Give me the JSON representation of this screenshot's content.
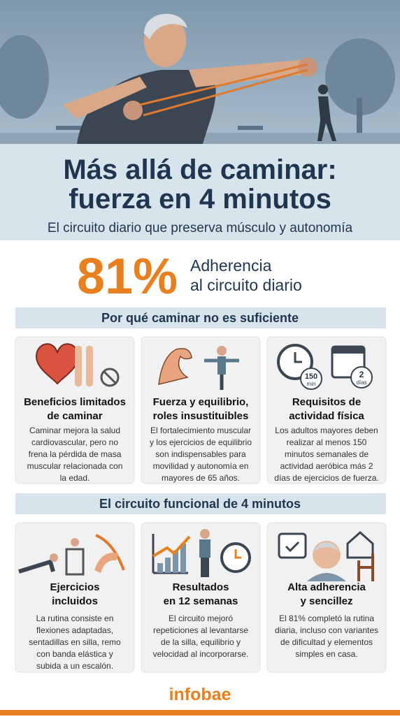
{
  "header": {
    "title_lines": [
      "Más allá de caminar:",
      "fuerza en 4 minutos"
    ],
    "subtitle": "El circuito diario que preserva músculo y autonomía"
  },
  "stat": {
    "value": "81%",
    "label_lines": [
      "Adherencia",
      "al circuito diario"
    ]
  },
  "sections": [
    {
      "heading": "Por qué caminar no es suficiente",
      "cards": [
        {
          "title_lines": [
            "Beneficios limitados",
            "de caminar"
          ],
          "body_lines": [
            "Caminar mejora la salud",
            "cardiovascular, pero no",
            "frena la pérdida de masa",
            "muscular relacionada con",
            "la edad."
          ]
        },
        {
          "title_lines": [
            "Fuerza y equilibrio,",
            "roles insustituibles"
          ],
          "body_lines": [
            "El fortalecimiento muscular",
            "y los ejercicios de equilibrio",
            "son indispensables para",
            "movilidad y autonomía en",
            "mayores de 65 años."
          ]
        },
        {
          "title_lines": [
            "Requisitos de",
            "actividad física"
          ],
          "icon_texts": [
            "150",
            "min",
            "2",
            "días"
          ],
          "body_lines": [
            "Los adultos mayores deben",
            "realizar al menos 150",
            "minutos semanales de",
            "actividad aeróbica más 2",
            "días de ejercicios de fuerza."
          ]
        }
      ]
    },
    {
      "heading": "El circuito funcional de 4 minutos",
      "cards": [
        {
          "title_lines": [
            "Ejercicios",
            "incluidos"
          ],
          "body_lines": [
            "La rutina consiste en",
            "flexiones adaptadas,",
            "sentadillas en silla, remo",
            "con banda elástica y",
            "subida a un escalón."
          ]
        },
        {
          "title_lines": [
            "Resultados",
            "en 12 semanas"
          ],
          "body_lines": [
            "El circuito mejoró",
            "repeticiones al levantarse",
            "de la silla, equilibrio y",
            "velocidad al incorporarse."
          ]
        },
        {
          "title_lines": [
            "Alta adherencia",
            "y sencillez"
          ],
          "body_lines": [
            "El 81% completó la rutina",
            "diaria, incluso con variantes",
            "de dificultad y elementos",
            "simples en casa."
          ]
        }
      ]
    }
  ],
  "footer": {
    "brand": "infobae"
  }
}
